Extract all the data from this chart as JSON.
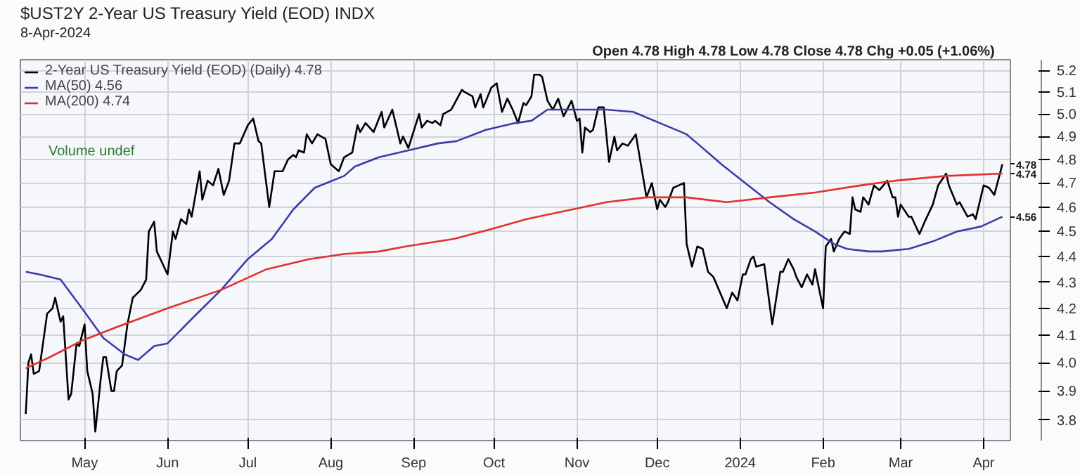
{
  "chart_data": {
    "type": "line",
    "title": "$UST2Y 2-Year US Treasury Yield (EOD) INDX",
    "subtitle": "8-Apr-2024",
    "annotations": [
      "Open 4.78  High 4.78  Low 4.78  Close 4.78  Chg +0.05 (+1.06%)",
      "Volume undef",
      {
        "text": "4.78",
        "x": "2024-04-08",
        "y": 4.78
      },
      {
        "text": "4.74",
        "x": "2024-04-08",
        "y": 4.74
      },
      {
        "text": "4.56",
        "x": "2024-04-08",
        "y": 4.56
      }
    ],
    "log": true,
    "grid": true,
    "legend": "top left",
    "xlim": [
      "2023-04-07",
      "2024-04-11"
    ],
    "xticks": [
      {
        "value": "2023-05-01",
        "label": "May"
      },
      {
        "value": "2023-06-01",
        "label": "Jun"
      },
      {
        "value": "2023-07-01",
        "label": "Jul"
      },
      {
        "value": "2023-08-01",
        "label": "Aug"
      },
      {
        "value": "2023-09-01",
        "label": "Sep"
      },
      {
        "value": "2023-10-01",
        "label": "Oct"
      },
      {
        "value": "2023-11-01",
        "label": "Nov"
      },
      {
        "value": "2023-12-01",
        "label": "Dec"
      },
      {
        "value": "2024-01-01",
        "label": "2024"
      },
      {
        "value": "2024-02-01",
        "label": "Feb"
      },
      {
        "value": "2024-03-01",
        "label": "Mar"
      },
      {
        "value": "2024-04-01",
        "label": "Apr"
      }
    ],
    "ylim": [
      3.73,
      5.25
    ],
    "yticks": [
      3.8,
      3.9,
      {
        "value": 4.0,
        "label": "4.0"
      },
      4.1,
      4.2,
      4.3,
      4.4,
      4.5,
      4.6,
      4.7,
      4.8,
      4.9,
      {
        "value": 5.0,
        "label": "5.0"
      },
      5.1,
      5.2
    ],
    "series": [
      {
        "name": "2-Year US Treasury Yield (EOD) (Daily) 4.78",
        "color": "#000000",
        "x": [
          "2023-04-09",
          "2023-04-10",
          "2023-04-11",
          "2023-04-12",
          "2023-04-14",
          "2023-04-17",
          "2023-04-19",
          "2023-04-20",
          "2023-04-22",
          "2023-04-23",
          "2023-04-25",
          "2023-04-26",
          "2023-04-28",
          "2023-04-29",
          "2023-05-01",
          "2023-05-02",
          "2023-05-04",
          "2023-05-05",
          "2023-05-07",
          "2023-05-08",
          "2023-05-09",
          "2023-05-11",
          "2023-05-12",
          "2023-05-13",
          "2023-05-15",
          "2023-05-17",
          "2023-05-19",
          "2023-05-20",
          "2023-05-22",
          "2023-05-24",
          "2023-05-25",
          "2023-05-27",
          "2023-05-28",
          "2023-06-01",
          "2023-06-03",
          "2023-06-04",
          "2023-06-06",
          "2023-06-08",
          "2023-06-09",
          "2023-06-10",
          "2023-06-13",
          "2023-06-14",
          "2023-06-16",
          "2023-06-18",
          "2023-06-20",
          "2023-06-22",
          "2023-06-24",
          "2023-06-26",
          "2023-06-28",
          "2023-07-01",
          "2023-07-03",
          "2023-07-05",
          "2023-07-06",
          "2023-07-09",
          "2023-07-11",
          "2023-07-14",
          "2023-07-16",
          "2023-07-18",
          "2023-07-19",
          "2023-07-20",
          "2023-07-22",
          "2023-07-23",
          "2023-07-25",
          "2023-07-27",
          "2023-07-30",
          "2023-08-01",
          "2023-08-04",
          "2023-08-06",
          "2023-08-09",
          "2023-08-11",
          "2023-08-12",
          "2023-08-14",
          "2023-08-17",
          "2023-08-20",
          "2023-08-21",
          "2023-08-24",
          "2023-08-27",
          "2023-08-28",
          "2023-08-30",
          "2023-09-03",
          "2023-09-04",
          "2023-09-06",
          "2023-09-08",
          "2023-09-09",
          "2023-09-11",
          "2023-09-12",
          "2023-09-15",
          "2023-09-19",
          "2023-09-20",
          "2023-09-23",
          "2023-09-24",
          "2023-09-26",
          "2023-09-27",
          "2023-09-30",
          "2023-10-02",
          "2023-10-04",
          "2023-10-06",
          "2023-10-08",
          "2023-10-10",
          "2023-10-12",
          "2023-10-13",
          "2023-10-15",
          "2023-10-16",
          "2023-10-18",
          "2023-10-19",
          "2023-10-21",
          "2023-10-23",
          "2023-10-25",
          "2023-10-27",
          "2023-10-30",
          "2023-11-01",
          "2023-11-02",
          "2023-11-03",
          "2023-11-04",
          "2023-11-06",
          "2023-11-07",
          "2023-11-09",
          "2023-11-11",
          "2023-11-13",
          "2023-11-15",
          "2023-11-16",
          "2023-11-18",
          "2023-11-20",
          "2023-11-23",
          "2023-11-27",
          "2023-11-29",
          "2023-12-01",
          "2023-12-02",
          "2023-12-04",
          "2023-12-05",
          "2023-12-07",
          "2023-12-09",
          "2023-12-11",
          "2023-12-12",
          "2023-12-14",
          "2023-12-16",
          "2023-12-18",
          "2023-12-20",
          "2023-12-22",
          "2023-12-27",
          "2023-12-29",
          "2023-12-31",
          "2024-01-02",
          "2024-01-03",
          "2024-01-05",
          "2024-01-06",
          "2024-01-07",
          "2024-01-10",
          "2024-01-13",
          "2024-01-16",
          "2024-01-17",
          "2024-01-19",
          "2024-01-21",
          "2024-01-22",
          "2024-01-24",
          "2024-01-26",
          "2024-01-28",
          "2024-01-29",
          "2024-02-01",
          "2024-02-02",
          "2024-02-04",
          "2024-02-05",
          "2024-02-07",
          "2024-02-09",
          "2024-02-11",
          "2024-02-12",
          "2024-02-13",
          "2024-02-15",
          "2024-02-16",
          "2024-02-18",
          "2024-02-20",
          "2024-02-22",
          "2024-02-25",
          "2024-02-27",
          "2024-02-28",
          "2024-02-29",
          "2024-03-01",
          "2024-03-04",
          "2024-03-05",
          "2024-03-08",
          "2024-03-10",
          "2024-03-13",
          "2024-03-15",
          "2024-03-18",
          "2024-03-19",
          "2024-03-22",
          "2024-03-23",
          "2024-03-26",
          "2024-03-28",
          "2024-03-29",
          "2024-04-01",
          "2024-04-03",
          "2024-04-05",
          "2024-04-08"
        ],
        "values": [
          3.82,
          4.0,
          4.03,
          3.96,
          3.97,
          4.18,
          4.2,
          4.24,
          4.15,
          4.17,
          3.87,
          3.89,
          4.07,
          4.06,
          4.14,
          3.97,
          3.89,
          3.76,
          3.94,
          4.02,
          4.02,
          3.9,
          3.9,
          3.97,
          3.99,
          4.14,
          4.24,
          4.25,
          4.27,
          4.31,
          4.5,
          4.54,
          4.42,
          4.33,
          4.5,
          4.47,
          4.55,
          4.53,
          4.59,
          4.56,
          4.75,
          4.63,
          4.71,
          4.69,
          4.76,
          4.65,
          4.71,
          4.87,
          4.87,
          4.95,
          4.98,
          4.88,
          4.87,
          4.6,
          4.75,
          4.75,
          4.8,
          4.82,
          4.81,
          4.84,
          4.83,
          4.91,
          4.87,
          4.91,
          4.89,
          4.78,
          4.75,
          4.81,
          4.83,
          4.95,
          4.92,
          4.96,
          4.92,
          5.01,
          4.94,
          5.02,
          4.87,
          4.9,
          4.85,
          5.0,
          4.94,
          4.97,
          4.96,
          4.97,
          4.95,
          5.0,
          5.02,
          5.11,
          5.1,
          5.08,
          5.03,
          5.09,
          5.03,
          5.12,
          5.14,
          5.01,
          5.07,
          5.02,
          4.96,
          5.05,
          5.04,
          5.08,
          5.18,
          5.18,
          5.17,
          5.06,
          5.02,
          5.07,
          4.99,
          5.06,
          4.97,
          4.98,
          4.83,
          4.94,
          4.92,
          4.93,
          5.03,
          5.03,
          4.79,
          4.9,
          4.84,
          4.87,
          4.86,
          4.91,
          4.64,
          4.7,
          4.59,
          4.63,
          4.6,
          4.62,
          4.68,
          4.69,
          4.7,
          4.45,
          4.36,
          4.44,
          4.43,
          4.34,
          4.32,
          4.2,
          4.26,
          4.23,
          4.33,
          4.33,
          4.39,
          4.4,
          4.36,
          4.37,
          4.14,
          4.34,
          4.34,
          4.39,
          4.35,
          4.32,
          4.28,
          4.33,
          4.29,
          4.35,
          4.2,
          4.44,
          4.47,
          4.42,
          4.47,
          4.5,
          4.49,
          4.64,
          4.59,
          4.58,
          4.64,
          4.61,
          4.69,
          4.67,
          4.71,
          4.64,
          4.64,
          4.56,
          4.61,
          4.56,
          4.56,
          4.49,
          4.54,
          4.61,
          4.69,
          4.74,
          4.69,
          4.61,
          4.62,
          4.56,
          4.57,
          4.55,
          4.69,
          4.68,
          4.65,
          4.78
        ]
      },
      {
        "name": "MA(50) 4.56",
        "color": "#3c3caa",
        "x": [
          "2023-04-09",
          "2023-04-14",
          "2023-04-22",
          "2023-04-30",
          "2023-05-08",
          "2023-05-16",
          "2023-05-21",
          "2023-05-27",
          "2023-06-01",
          "2023-06-10",
          "2023-06-21",
          "2023-07-01",
          "2023-07-10",
          "2023-07-18",
          "2023-07-26",
          "2023-08-06",
          "2023-08-10",
          "2023-08-19",
          "2023-08-30",
          "2023-09-10",
          "2023-09-17",
          "2023-09-28",
          "2023-10-09",
          "2023-10-15",
          "2023-10-21",
          "2023-11-01",
          "2023-11-12",
          "2023-11-22",
          "2023-12-02",
          "2023-12-12",
          "2023-12-16",
          "2023-12-25",
          "2024-01-04",
          "2024-01-12",
          "2024-01-21",
          "2024-01-29",
          "2024-02-05",
          "2024-02-10",
          "2024-02-18",
          "2024-02-23",
          "2024-03-04",
          "2024-03-13",
          "2024-03-22",
          "2024-03-31",
          "2024-04-08"
        ],
        "values": [
          4.34,
          4.33,
          4.31,
          4.2,
          4.09,
          4.03,
          4.01,
          4.06,
          4.07,
          4.16,
          4.27,
          4.39,
          4.47,
          4.59,
          4.68,
          4.73,
          4.77,
          4.81,
          4.84,
          4.87,
          4.88,
          4.93,
          4.96,
          4.97,
          5.02,
          5.02,
          5.02,
          5.01,
          4.96,
          4.91,
          4.87,
          4.78,
          4.69,
          4.62,
          4.55,
          4.5,
          4.45,
          4.43,
          4.42,
          4.42,
          4.43,
          4.46,
          4.5,
          4.52,
          4.56
        ]
      },
      {
        "name": "MA(200) 4.74",
        "color": "#e03030",
        "x": [
          "2023-04-09",
          "2023-04-18",
          "2023-04-30",
          "2023-05-13",
          "2023-06-01",
          "2023-06-21",
          "2023-07-08",
          "2023-07-24",
          "2023-08-06",
          "2023-08-19",
          "2023-08-29",
          "2023-09-16",
          "2023-09-30",
          "2023-10-13",
          "2023-10-26",
          "2023-11-12",
          "2023-11-27",
          "2023-12-12",
          "2023-12-27",
          "2024-01-12",
          "2024-01-29",
          "2024-02-15",
          "2024-02-28",
          "2024-03-18",
          "2024-04-08"
        ],
        "values": [
          3.98,
          4.02,
          4.08,
          4.13,
          4.2,
          4.27,
          4.35,
          4.39,
          4.41,
          4.42,
          4.44,
          4.47,
          4.51,
          4.55,
          4.58,
          4.62,
          4.64,
          4.64,
          4.62,
          4.64,
          4.66,
          4.69,
          4.71,
          4.73,
          4.74
        ]
      }
    ]
  }
}
